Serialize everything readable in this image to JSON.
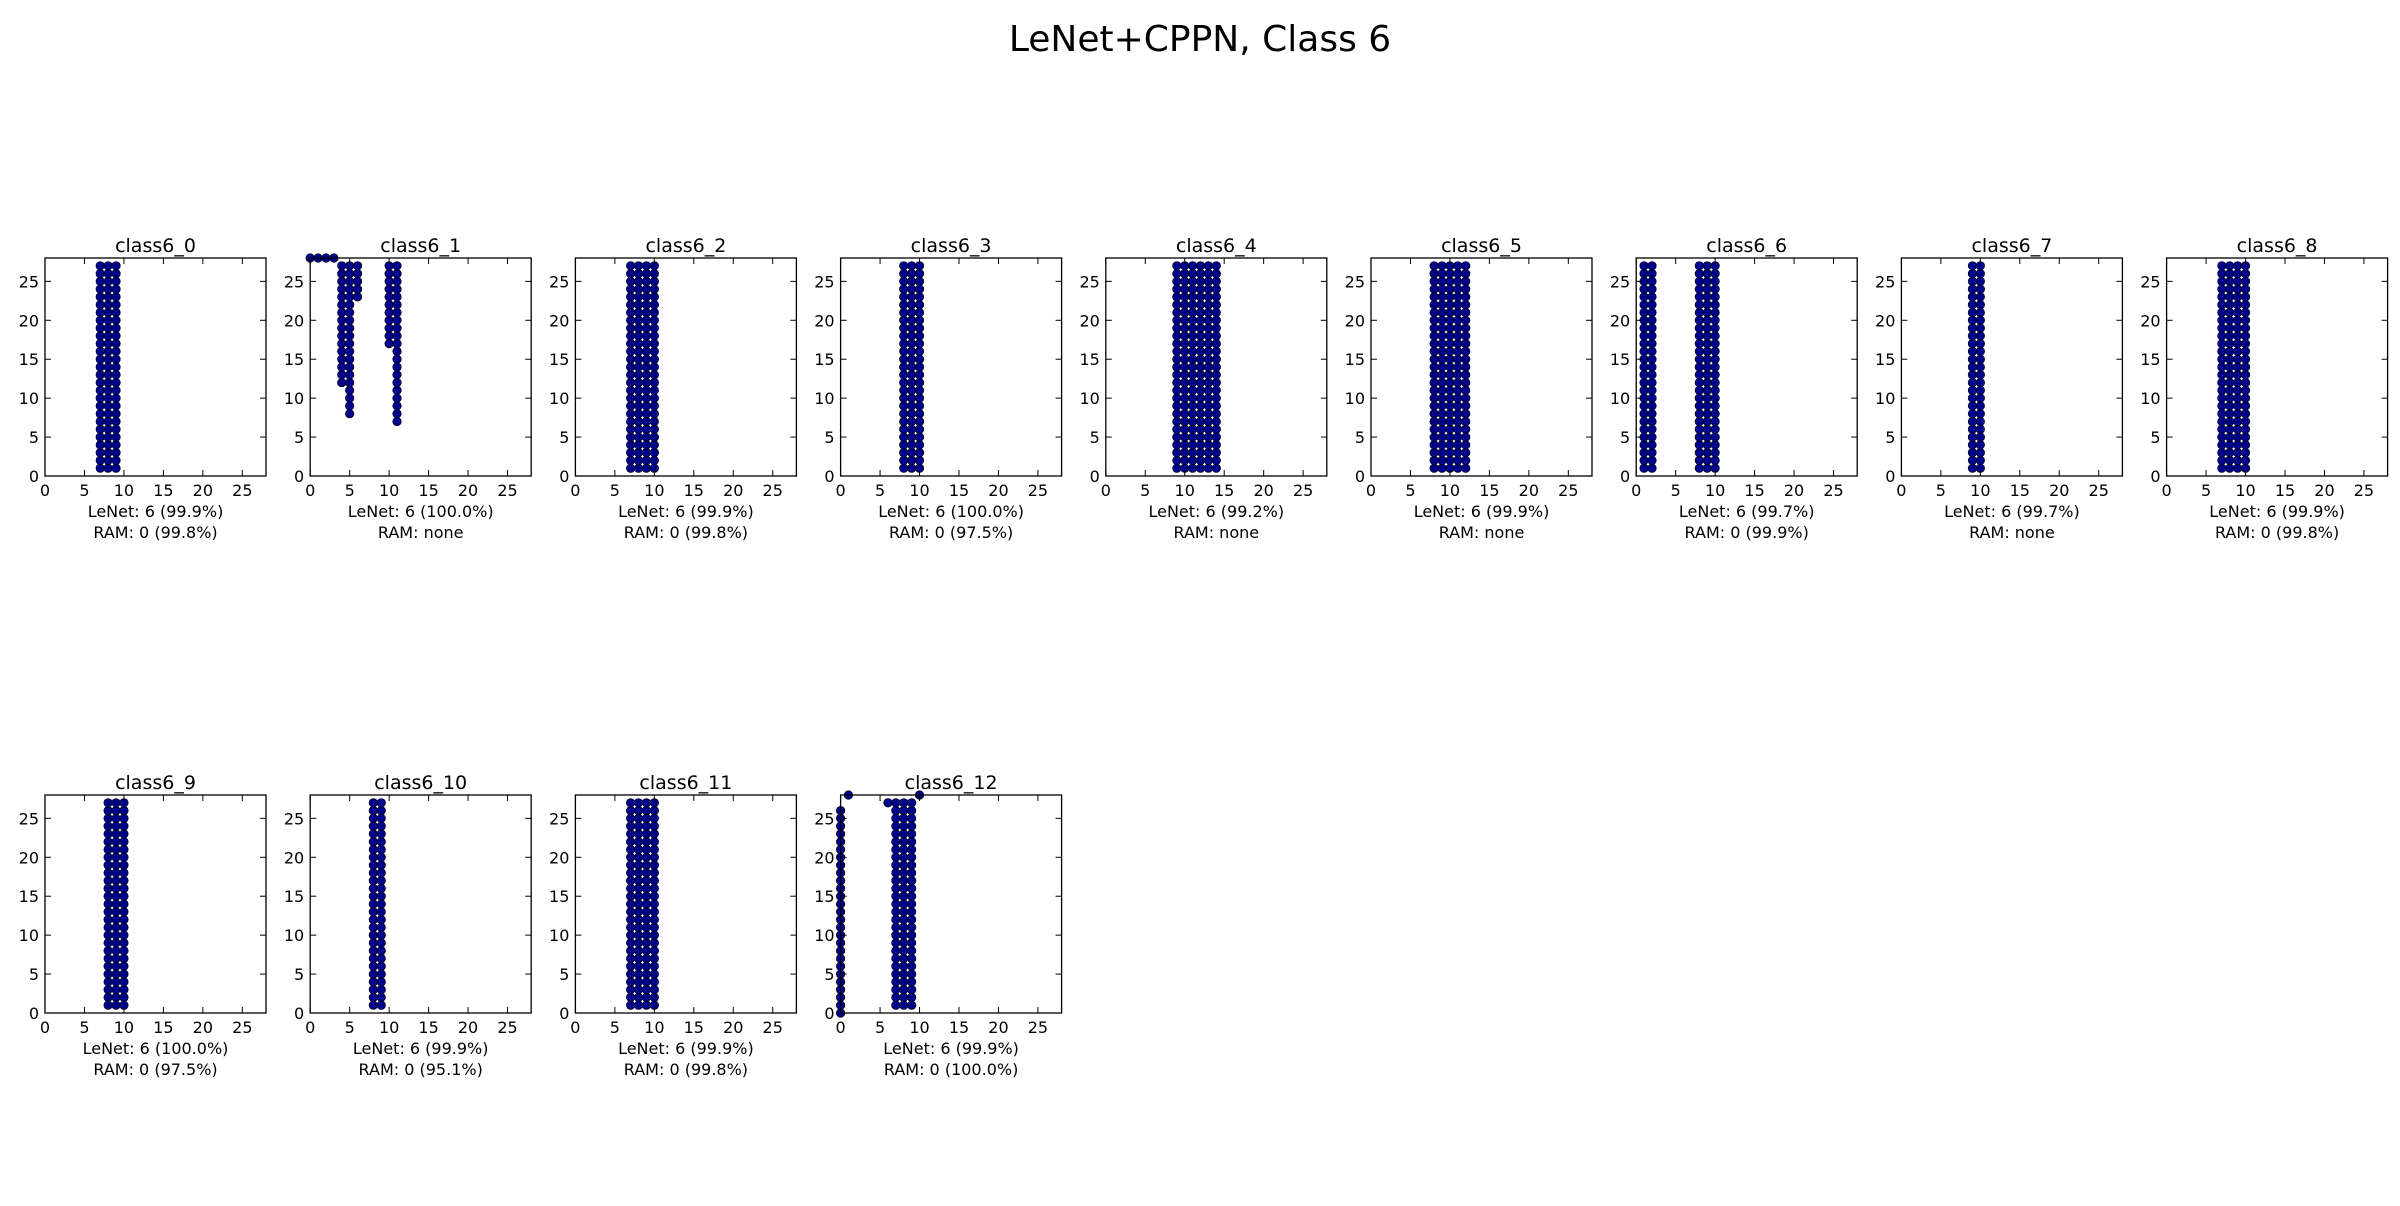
{
  "figure": {
    "title": "LeNet+CPPN, Class 6"
  },
  "style": {
    "marker_color": "#00008b",
    "marker_edge": "#000000",
    "axes_color": "#000000"
  },
  "chart_data": [
    {
      "type": "scatter",
      "title": "class6_0",
      "xlabel": [
        "LeNet: 6 (99.9%)",
        "RAM: 0 (99.8%)"
      ],
      "xlim": [
        0,
        28
      ],
      "ylim": [
        0,
        28
      ],
      "xticks": [
        0,
        5,
        10,
        15,
        20,
        25
      ],
      "yticks": [
        0,
        5,
        10,
        15,
        20,
        25
      ],
      "points": [],
      "columns": [
        {
          "x": 7,
          "y": [
            1,
            27
          ]
        },
        {
          "x": 8,
          "y": [
            1,
            27
          ]
        },
        {
          "x": 9,
          "y": [
            1,
            27
          ]
        }
      ]
    },
    {
      "type": "scatter",
      "title": "class6_1",
      "xlabel": [
        "LeNet: 6 (100.0%)",
        "RAM: none"
      ],
      "xlim": [
        0,
        28
      ],
      "ylim": [
        0,
        28
      ],
      "xticks": [
        0,
        5,
        10,
        15,
        20,
        25
      ],
      "yticks": [
        0,
        5,
        10,
        15,
        20,
        25
      ],
      "points": [
        {
          "x": 0,
          "y": 28
        },
        {
          "x": 1,
          "y": 28
        },
        {
          "x": 2,
          "y": 28
        },
        {
          "x": 3,
          "y": 28
        },
        {
          "x": 10,
          "y": 17
        },
        {
          "x": 11,
          "y": 16
        },
        {
          "x": 11,
          "y": 15
        }
      ],
      "columns": [
        {
          "x": 4,
          "y": [
            12,
            27
          ]
        },
        {
          "x": 5,
          "y": [
            8,
            27
          ]
        },
        {
          "x": 6,
          "y": [
            23,
            27
          ]
        },
        {
          "x": 10,
          "y": [
            18,
            27
          ]
        },
        {
          "x": 11,
          "y": [
            7,
            14
          ]
        },
        {
          "x": 11,
          "y": [
            17,
            27
          ]
        }
      ]
    },
    {
      "type": "scatter",
      "title": "class6_2",
      "xlabel": [
        "LeNet: 6 (99.9%)",
        "RAM: 0 (99.8%)"
      ],
      "xlim": [
        0,
        28
      ],
      "ylim": [
        0,
        28
      ],
      "xticks": [
        0,
        5,
        10,
        15,
        20,
        25
      ],
      "yticks": [
        0,
        5,
        10,
        15,
        20,
        25
      ],
      "points": [],
      "columns": [
        {
          "x": 7,
          "y": [
            1,
            27
          ]
        },
        {
          "x": 8,
          "y": [
            1,
            27
          ]
        },
        {
          "x": 9,
          "y": [
            1,
            27
          ]
        },
        {
          "x": 10,
          "y": [
            1,
            27
          ]
        }
      ]
    },
    {
      "type": "scatter",
      "title": "class6_3",
      "xlabel": [
        "LeNet: 6 (100.0%)",
        "RAM: 0 (97.5%)"
      ],
      "xlim": [
        0,
        28
      ],
      "ylim": [
        0,
        28
      ],
      "xticks": [
        0,
        5,
        10,
        15,
        20,
        25
      ],
      "yticks": [
        0,
        5,
        10,
        15,
        20,
        25
      ],
      "points": [],
      "columns": [
        {
          "x": 8,
          "y": [
            1,
            27
          ]
        },
        {
          "x": 9,
          "y": [
            1,
            27
          ]
        },
        {
          "x": 10,
          "y": [
            1,
            27
          ]
        }
      ]
    },
    {
      "type": "scatter",
      "title": "class6_4",
      "xlabel": [
        "LeNet: 6 (99.2%)",
        "RAM: none"
      ],
      "xlim": [
        0,
        28
      ],
      "ylim": [
        0,
        28
      ],
      "xticks": [
        0,
        5,
        10,
        15,
        20,
        25
      ],
      "yticks": [
        0,
        5,
        10,
        15,
        20,
        25
      ],
      "points": [],
      "columns": [
        {
          "x": 9,
          "y": [
            1,
            27
          ]
        },
        {
          "x": 10,
          "y": [
            1,
            27
          ]
        },
        {
          "x": 11,
          "y": [
            1,
            27
          ]
        },
        {
          "x": 12,
          "y": [
            1,
            27
          ]
        },
        {
          "x": 13,
          "y": [
            1,
            27
          ]
        },
        {
          "x": 14,
          "y": [
            1,
            27
          ]
        }
      ]
    },
    {
      "type": "scatter",
      "title": "class6_5",
      "xlabel": [
        "LeNet: 6 (99.9%)",
        "RAM: none"
      ],
      "xlim": [
        0,
        28
      ],
      "ylim": [
        0,
        28
      ],
      "xticks": [
        0,
        5,
        10,
        15,
        20,
        25
      ],
      "yticks": [
        0,
        5,
        10,
        15,
        20,
        25
      ],
      "points": [],
      "columns": [
        {
          "x": 8,
          "y": [
            1,
            27
          ]
        },
        {
          "x": 9,
          "y": [
            1,
            27
          ]
        },
        {
          "x": 10,
          "y": [
            1,
            27
          ]
        },
        {
          "x": 11,
          "y": [
            1,
            27
          ]
        },
        {
          "x": 12,
          "y": [
            1,
            27
          ]
        }
      ]
    },
    {
      "type": "scatter",
      "title": "class6_6",
      "xlabel": [
        "LeNet: 6 (99.7%)",
        "RAM: 0 (99.9%)"
      ],
      "xlim": [
        0,
        28
      ],
      "ylim": [
        0,
        28
      ],
      "xticks": [
        0,
        5,
        10,
        15,
        20,
        25
      ],
      "yticks": [
        0,
        5,
        10,
        15,
        20,
        25
      ],
      "points": [],
      "columns": [
        {
          "x": 1,
          "y": [
            1,
            27
          ]
        },
        {
          "x": 2,
          "y": [
            1,
            27
          ]
        },
        {
          "x": 8,
          "y": [
            1,
            27
          ]
        },
        {
          "x": 9,
          "y": [
            1,
            27
          ]
        },
        {
          "x": 10,
          "y": [
            1,
            27
          ]
        }
      ]
    },
    {
      "type": "scatter",
      "title": "class6_7",
      "xlabel": [
        "LeNet: 6 (99.7%)",
        "RAM: none"
      ],
      "xlim": [
        0,
        28
      ],
      "ylim": [
        0,
        28
      ],
      "xticks": [
        0,
        5,
        10,
        15,
        20,
        25
      ],
      "yticks": [
        0,
        5,
        10,
        15,
        20,
        25
      ],
      "points": [],
      "columns": [
        {
          "x": 9,
          "y": [
            1,
            27
          ]
        },
        {
          "x": 10,
          "y": [
            1,
            27
          ]
        }
      ]
    },
    {
      "type": "scatter",
      "title": "class6_8",
      "xlabel": [
        "LeNet: 6 (99.9%)",
        "RAM: 0 (99.8%)"
      ],
      "xlim": [
        0,
        28
      ],
      "ylim": [
        0,
        28
      ],
      "xticks": [
        0,
        5,
        10,
        15,
        20,
        25
      ],
      "yticks": [
        0,
        5,
        10,
        15,
        20,
        25
      ],
      "points": [],
      "columns": [
        {
          "x": 7,
          "y": [
            1,
            27
          ]
        },
        {
          "x": 8,
          "y": [
            1,
            27
          ]
        },
        {
          "x": 9,
          "y": [
            1,
            27
          ]
        },
        {
          "x": 10,
          "y": [
            1,
            27
          ]
        }
      ]
    },
    {
      "type": "scatter",
      "title": "class6_9",
      "xlabel": [
        "LeNet: 6 (100.0%)",
        "RAM: 0 (97.5%)"
      ],
      "xlim": [
        0,
        28
      ],
      "ylim": [
        0,
        28
      ],
      "xticks": [
        0,
        5,
        10,
        15,
        20,
        25
      ],
      "yticks": [
        0,
        5,
        10,
        15,
        20,
        25
      ],
      "points": [],
      "columns": [
        {
          "x": 8,
          "y": [
            1,
            27
          ]
        },
        {
          "x": 9,
          "y": [
            1,
            27
          ]
        },
        {
          "x": 10,
          "y": [
            1,
            27
          ]
        }
      ]
    },
    {
      "type": "scatter",
      "title": "class6_10",
      "xlabel": [
        "LeNet: 6 (99.9%)",
        "RAM: 0 (95.1%)"
      ],
      "xlim": [
        0,
        28
      ],
      "ylim": [
        0,
        28
      ],
      "xticks": [
        0,
        5,
        10,
        15,
        20,
        25
      ],
      "yticks": [
        0,
        5,
        10,
        15,
        20,
        25
      ],
      "points": [],
      "columns": [
        {
          "x": 8,
          "y": [
            1,
            27
          ]
        },
        {
          "x": 9,
          "y": [
            1,
            27
          ]
        }
      ]
    },
    {
      "type": "scatter",
      "title": "class6_11",
      "xlabel": [
        "LeNet: 6 (99.9%)",
        "RAM: 0 (99.8%)"
      ],
      "xlim": [
        0,
        28
      ],
      "ylim": [
        0,
        28
      ],
      "xticks": [
        0,
        5,
        10,
        15,
        20,
        25
      ],
      "yticks": [
        0,
        5,
        10,
        15,
        20,
        25
      ],
      "points": [],
      "columns": [
        {
          "x": 7,
          "y": [
            1,
            27
          ]
        },
        {
          "x": 8,
          "y": [
            1,
            27
          ]
        },
        {
          "x": 9,
          "y": [
            1,
            27
          ]
        },
        {
          "x": 10,
          "y": [
            1,
            27
          ]
        }
      ]
    },
    {
      "type": "scatter",
      "title": "class6_12",
      "xlabel": [
        "LeNet: 6 (99.9%)",
        "RAM: 0 (100.0%)"
      ],
      "xlim": [
        0,
        28
      ],
      "ylim": [
        0,
        28
      ],
      "xticks": [
        0,
        5,
        10,
        15,
        20,
        25
      ],
      "yticks": [
        0,
        5,
        10,
        15,
        20,
        25
      ],
      "points": [
        {
          "x": 1,
          "y": 28
        },
        {
          "x": 6,
          "y": 27
        },
        {
          "x": 7,
          "y": 27
        },
        {
          "x": 10,
          "y": 28
        }
      ],
      "columns": [
        {
          "x": 0,
          "y": [
            0,
            26
          ]
        },
        {
          "x": 7,
          "y": [
            1,
            26
          ]
        },
        {
          "x": 8,
          "y": [
            1,
            27
          ]
        },
        {
          "x": 9,
          "y": [
            1,
            27
          ]
        }
      ]
    }
  ]
}
